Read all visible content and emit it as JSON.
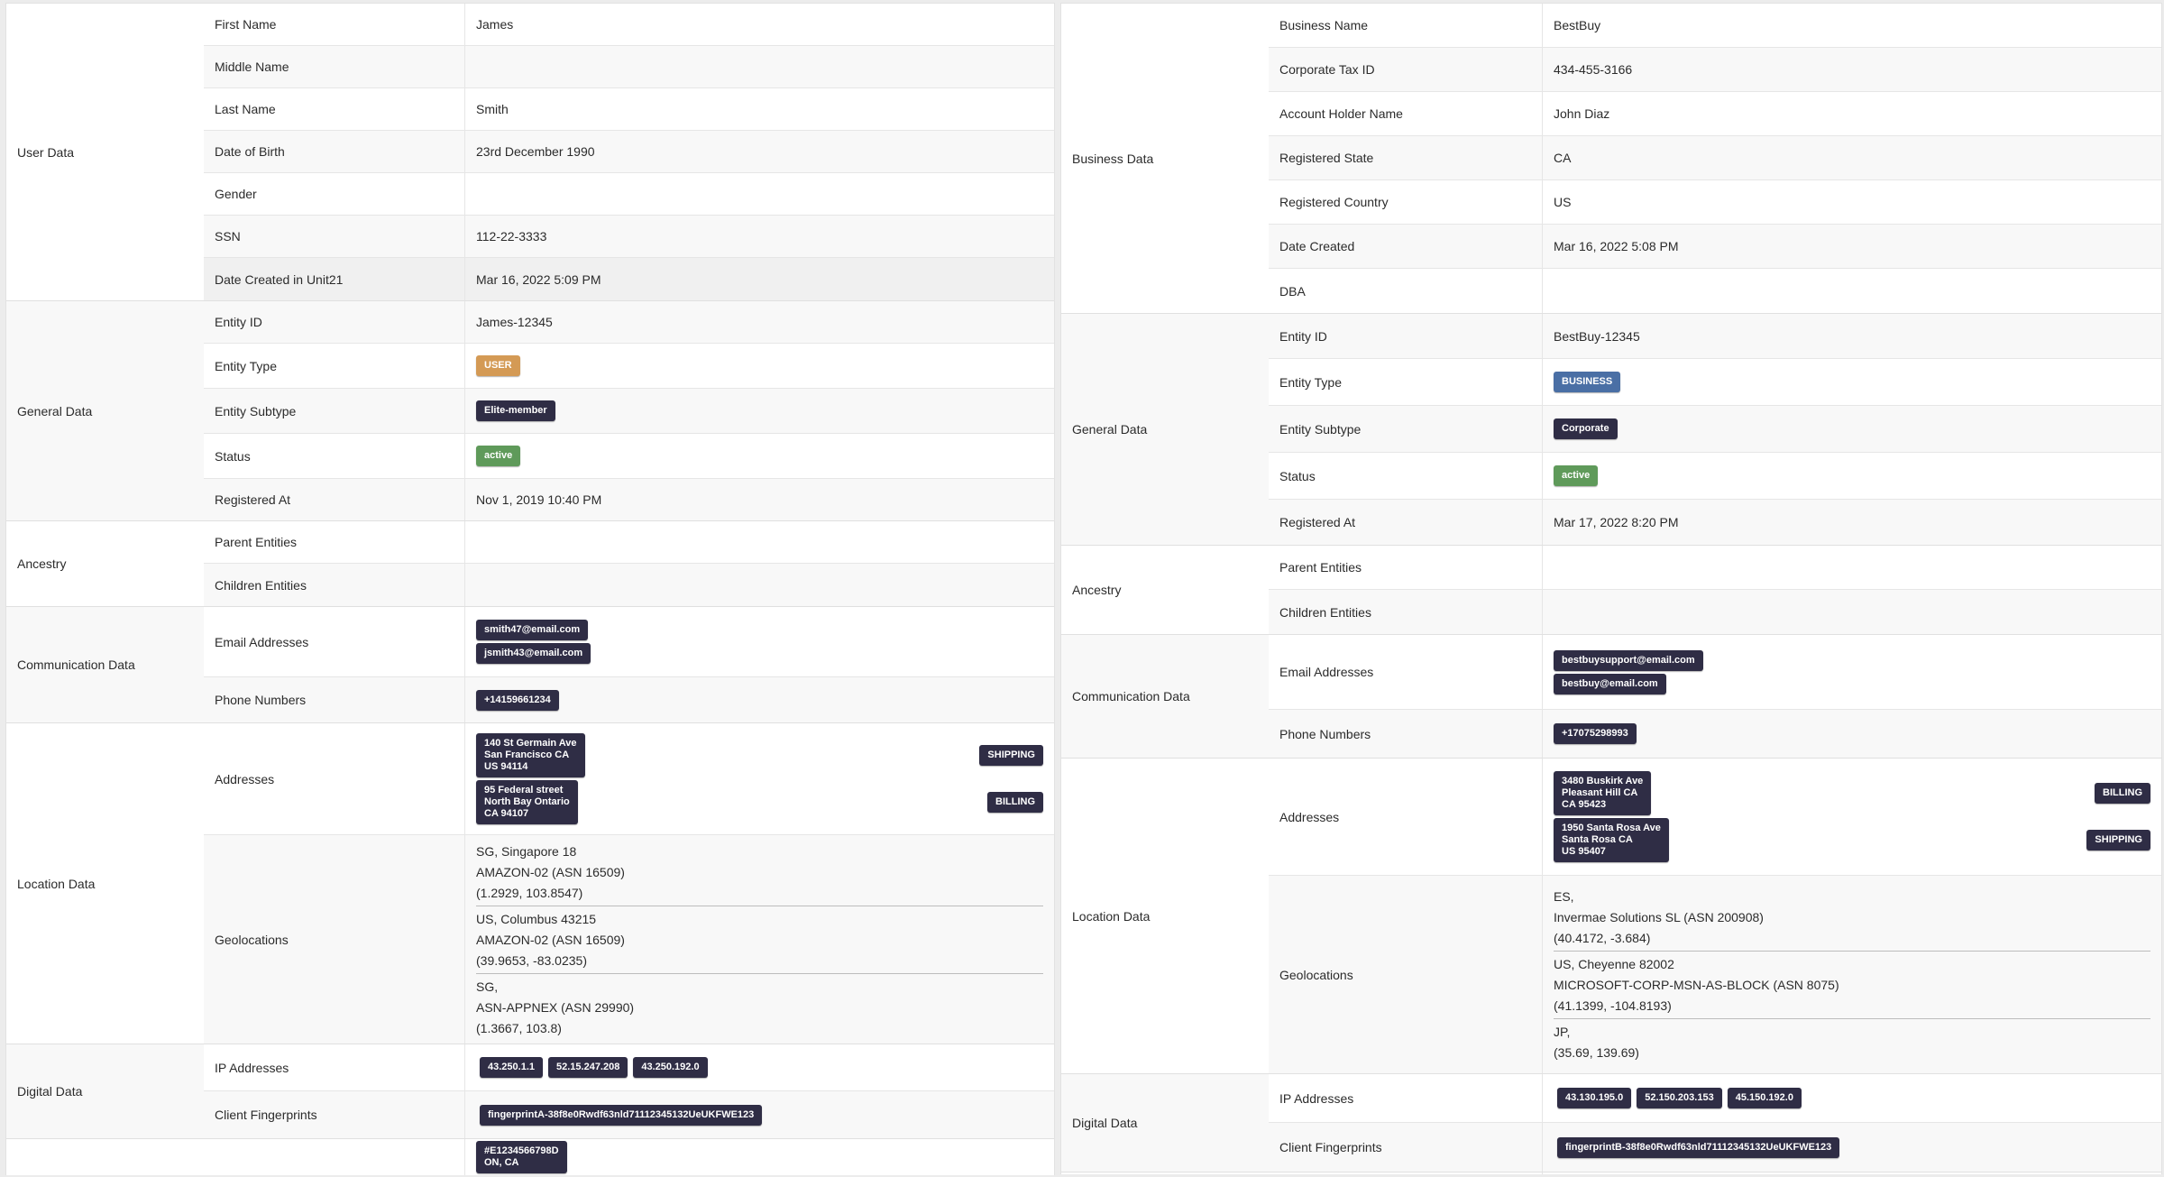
{
  "colors": {
    "user": "#d49a55",
    "business": "#4a6fa5",
    "active": "#5f9a5a",
    "dark": "#2f2d45"
  },
  "panels": [
    {
      "sections": [
        {
          "group": "User Data",
          "rows": [
            {
              "label": "First Name",
              "type": "text",
              "value": "James"
            },
            {
              "label": "Middle Name",
              "type": "text",
              "value": ""
            },
            {
              "label": "Last Name",
              "type": "text",
              "value": "Smith"
            },
            {
              "label": "Date of Birth",
              "type": "text",
              "value": "23rd December 1990"
            },
            {
              "label": "Gender",
              "type": "text",
              "value": ""
            },
            {
              "label": "SSN",
              "type": "text",
              "value": "112-22-3333"
            },
            {
              "label": "Date Created in Unit21",
              "type": "text",
              "value": "Mar 16, 2022 5:09 PM"
            }
          ]
        },
        {
          "group": "General Data",
          "rows": [
            {
              "label": "Entity ID",
              "type": "text",
              "value": "James-12345"
            },
            {
              "label": "Entity Type",
              "type": "badge",
              "color": "user",
              "value": "USER"
            },
            {
              "label": "Entity Subtype",
              "type": "badge",
              "color": "dark",
              "value": "Elite-member"
            },
            {
              "label": "Status",
              "type": "badge",
              "color": "active",
              "value": "active"
            },
            {
              "label": "Registered At",
              "type": "text",
              "value": "Nov 1, 2019 10:40 PM"
            }
          ]
        },
        {
          "group": "Ancestry",
          "rows": [
            {
              "label": "Parent Entities",
              "type": "text",
              "value": ""
            },
            {
              "label": "Children Entities",
              "type": "text",
              "value": ""
            }
          ]
        },
        {
          "group": "Communication Data",
          "rows": [
            {
              "label": "Email Addresses",
              "type": "stack",
              "values": [
                "smith47@email.com",
                "jsmith43@email.com"
              ]
            },
            {
              "label": "Phone Numbers",
              "type": "stack",
              "values": [
                "+14159661234"
              ]
            }
          ]
        },
        {
          "group": "Location Data",
          "rows": [
            {
              "label": "Addresses",
              "type": "addr",
              "values": [
                {
                  "address": "140 St Germain Ave\nSan Francisco CA\nUS 94114",
                  "tag": "SHIPPING"
                },
                {
                  "address": "95 Federal street\nNorth Bay Ontario\nCA 94107",
                  "tag": "BILLING"
                }
              ]
            },
            {
              "label": "Geolocations",
              "type": "geo",
              "values": [
                [
                  "SG, Singapore 18",
                  "AMAZON-02 (ASN 16509)",
                  "(1.2929, 103.8547)"
                ],
                [
                  "US, Columbus 43215",
                  "AMAZON-02 (ASN 16509)",
                  "(39.9653, -83.0235)"
                ],
                [
                  "SG,",
                  "ASN-APPNEX (ASN 29990)",
                  "(1.3667, 103.8)"
                ]
              ]
            }
          ]
        },
        {
          "group": "Digital Data",
          "rows": [
            {
              "label": "IP Addresses",
              "type": "chips",
              "values": [
                "43.250.1.1",
                "52.15.247.208",
                "43.250.192.0"
              ]
            },
            {
              "label": "Client Fingerprints",
              "type": "chips",
              "values": [
                "fingerprintA-38f8e0Rwdf63nld71112345132UeUKFWE123"
              ]
            }
          ]
        },
        {
          "group": "",
          "rows": [
            {
              "label": "",
              "type": "stack",
              "values": [
                "#E1234566798D\nON, CA"
              ]
            }
          ]
        }
      ]
    },
    {
      "sections": [
        {
          "group": "Business Data",
          "rows": [
            {
              "label": "Business Name",
              "type": "text",
              "value": "BestBuy"
            },
            {
              "label": "Corporate Tax ID",
              "type": "text",
              "value": "434-455-3166"
            },
            {
              "label": "Account Holder Name",
              "type": "text",
              "value": "John Diaz"
            },
            {
              "label": "Registered State",
              "type": "text",
              "value": "CA"
            },
            {
              "label": "Registered Country",
              "type": "text",
              "value": "US"
            },
            {
              "label": "Date Created",
              "type": "text",
              "value": "Mar 16, 2022 5:08 PM"
            },
            {
              "label": "DBA",
              "type": "text",
              "value": ""
            }
          ]
        },
        {
          "group": "General Data",
          "rows": [
            {
              "label": "Entity ID",
              "type": "text",
              "value": "BestBuy-12345"
            },
            {
              "label": "Entity Type",
              "type": "badge",
              "color": "business",
              "value": "BUSINESS"
            },
            {
              "label": "Entity Subtype",
              "type": "badge",
              "color": "dark",
              "value": "Corporate"
            },
            {
              "label": "Status",
              "type": "badge",
              "color": "active",
              "value": "active"
            },
            {
              "label": "Registered At",
              "type": "text",
              "value": "Mar 17, 2022 8:20 PM"
            }
          ]
        },
        {
          "group": "Ancestry",
          "rows": [
            {
              "label": "Parent Entities",
              "type": "text",
              "value": ""
            },
            {
              "label": "Children Entities",
              "type": "text",
              "value": ""
            }
          ]
        },
        {
          "group": "Communication Data",
          "rows": [
            {
              "label": "Email Addresses",
              "type": "stack",
              "values": [
                "bestbuysupport@email.com",
                "bestbuy@email.com"
              ]
            },
            {
              "label": "Phone Numbers",
              "type": "stack",
              "values": [
                "+17075298993"
              ]
            }
          ]
        },
        {
          "group": "Location Data",
          "rows": [
            {
              "label": "Addresses",
              "type": "addr",
              "values": [
                {
                  "address": "3480 Buskirk Ave\nPleasant Hill CA\nCA 95423",
                  "tag": "BILLING"
                },
                {
                  "address": "1950 Santa Rosa Ave\nSanta Rosa CA\nUS 95407",
                  "tag": "SHIPPING"
                }
              ]
            },
            {
              "label": "Geolocations",
              "type": "geo",
              "values": [
                [
                  "ES,",
                  "Invermae Solutions SL (ASN 200908)",
                  "(40.4172, -3.684)"
                ],
                [
                  "US, Cheyenne 82002",
                  "MICROSOFT-CORP-MSN-AS-BLOCK (ASN 8075)",
                  "(41.1399, -104.8193)"
                ],
                [
                  "JP,",
                  "(35.69, 139.69)"
                ]
              ]
            }
          ]
        },
        {
          "group": "Digital Data",
          "rows": [
            {
              "label": "IP Addresses",
              "type": "chips",
              "values": [
                "43.130.195.0",
                "52.150.203.153",
                "45.150.192.0"
              ]
            },
            {
              "label": "Client Fingerprints",
              "type": "chips",
              "values": [
                "fingerprintB-38f8e0Rwdf63nld71112345132UeUKFWE123"
              ]
            }
          ]
        },
        {
          "group": "",
          "rows": [
            {
              "label": "",
              "type": "text",
              "value": ""
            }
          ]
        }
      ]
    }
  ]
}
